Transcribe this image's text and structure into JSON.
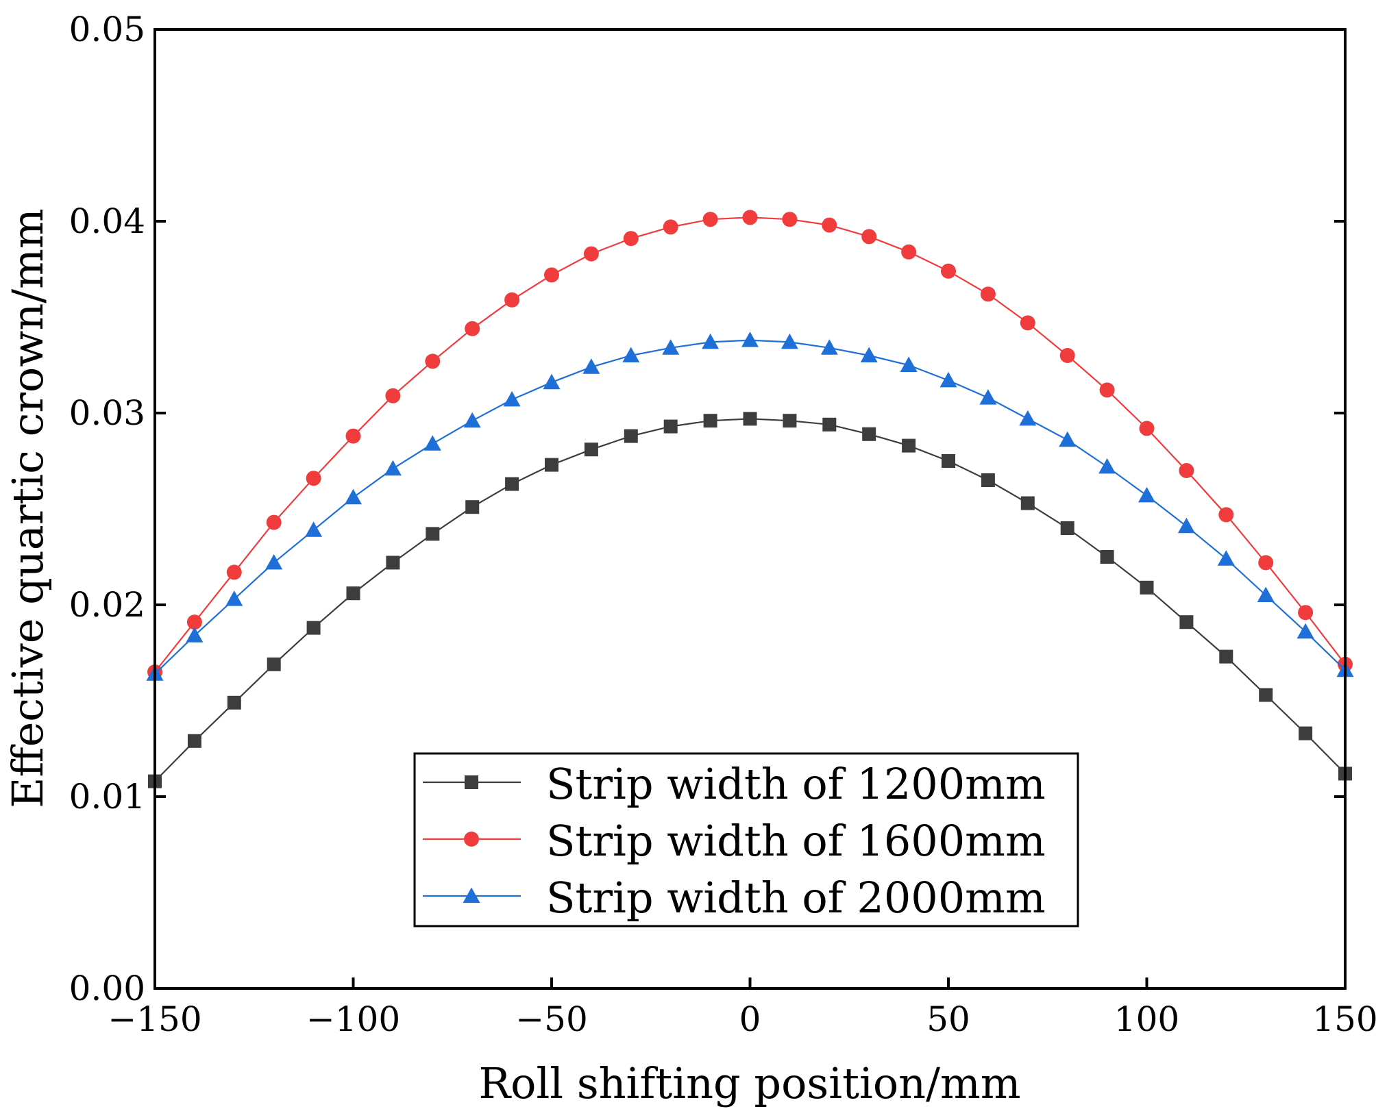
{
  "chart_data": {
    "type": "line",
    "title": "",
    "xlabel": "Roll shifting position/mm",
    "ylabel": "Effective quartic crown/mm",
    "xlim": [
      -150,
      150
    ],
    "ylim": [
      0.0,
      0.05
    ],
    "grid": false,
    "legend_position": "lower-center",
    "x_ticks": [
      {
        "value": -150,
        "label": "−150"
      },
      {
        "value": -100,
        "label": "−100"
      },
      {
        "value": -50,
        "label": "−50"
      },
      {
        "value": 0,
        "label": "0"
      },
      {
        "value": 50,
        "label": "50"
      },
      {
        "value": 100,
        "label": "100"
      },
      {
        "value": 150,
        "label": "150"
      }
    ],
    "y_ticks": [
      {
        "value": 0.0,
        "label": "0.00"
      },
      {
        "value": 0.01,
        "label": "0.01"
      },
      {
        "value": 0.02,
        "label": "0.02"
      },
      {
        "value": 0.03,
        "label": "0.03"
      },
      {
        "value": 0.04,
        "label": "0.04"
      },
      {
        "value": 0.05,
        "label": "0.05"
      }
    ],
    "x": [
      -150,
      -140,
      -130,
      -120,
      -110,
      -100,
      -90,
      -80,
      -70,
      -60,
      -50,
      -40,
      -30,
      -20,
      -10,
      0,
      10,
      20,
      30,
      40,
      50,
      60,
      70,
      80,
      90,
      100,
      110,
      120,
      130,
      140,
      150
    ],
    "series": [
      {
        "name": "Strip width of 1200mm",
        "color": "#3d3d3d",
        "marker": "square",
        "values": [
          0.0108,
          0.0129,
          0.0149,
          0.0169,
          0.0188,
          0.0206,
          0.0222,
          0.0237,
          0.0251,
          0.0263,
          0.0273,
          0.0281,
          0.0288,
          0.0293,
          0.0296,
          0.0297,
          0.0296,
          0.0294,
          0.0289,
          0.0283,
          0.0275,
          0.0265,
          0.0253,
          0.024,
          0.0225,
          0.0209,
          0.0191,
          0.0173,
          0.0153,
          0.0133,
          0.0112
        ]
      },
      {
        "name": "Strip width of 1600mm",
        "color": "#f03c3c",
        "marker": "circle",
        "values": [
          0.0165,
          0.0191,
          0.0217,
          0.0243,
          0.0266,
          0.0288,
          0.0309,
          0.0327,
          0.0344,
          0.0359,
          0.0372,
          0.0383,
          0.0391,
          0.0397,
          0.0401,
          0.0402,
          0.0401,
          0.0398,
          0.0392,
          0.0384,
          0.0374,
          0.0362,
          0.0347,
          0.033,
          0.0312,
          0.0292,
          0.027,
          0.0247,
          0.0222,
          0.0196,
          0.0169
        ]
      },
      {
        "name": "Strip width of 2000mm",
        "color": "#1f6fd8",
        "marker": "triangle",
        "values": [
          0.0164,
          0.0184,
          0.0203,
          0.0222,
          0.0239,
          0.0256,
          0.0271,
          0.0284,
          0.0296,
          0.0307,
          0.0316,
          0.0324,
          0.033,
          0.0334,
          0.0337,
          0.0338,
          0.0337,
          0.0334,
          0.033,
          0.0325,
          0.0317,
          0.0308,
          0.0297,
          0.0286,
          0.0272,
          0.0257,
          0.0241,
          0.0224,
          0.0205,
          0.0186,
          0.0166
        ]
      }
    ]
  }
}
